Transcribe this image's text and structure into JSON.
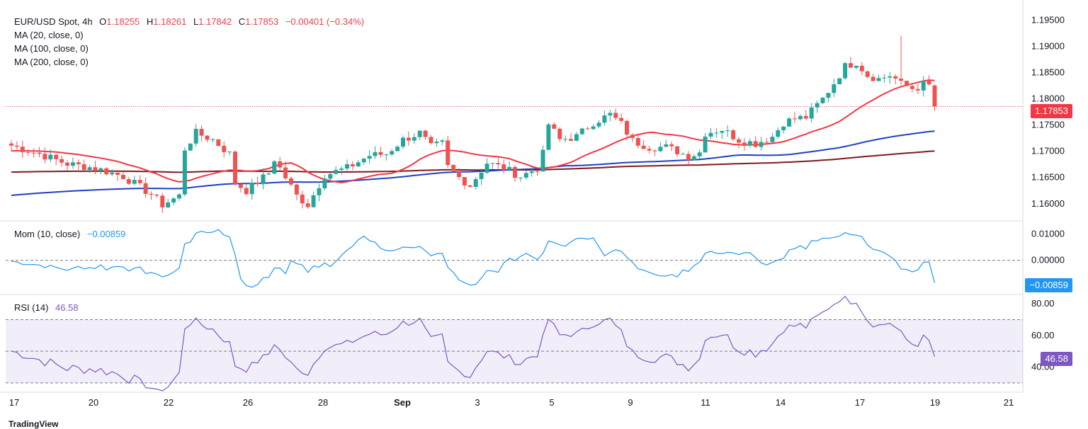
{
  "main_legend": {
    "symbol": "EUR/USD Spot, 4h",
    "open_label": "O",
    "open": "1.18255",
    "high_label": "H",
    "high": "1.18261",
    "low_label": "L",
    "low": "1.17842",
    "close_label": "C",
    "close": "1.17853",
    "change": "−0.00401 (−0.34%)",
    "ma20": "MA (20, close, 0)",
    "ma100": "MA (100, close, 0)",
    "ma200": "MA (200, close, 0)"
  },
  "mom_legend": {
    "label": "Mom (10, close)",
    "value": "−0.00859"
  },
  "rsi_legend": {
    "label": "RSI (14)",
    "value": "46.58"
  },
  "price_tag": "1.17853",
  "mom_tag": "−0.00859",
  "rsi_tag": "46.58",
  "watermark": "TradingView",
  "colors": {
    "up": "#26a69a",
    "down": "#ef5350",
    "ma20": "#f23645",
    "ma100": "#1e40c8",
    "ma200": "#801922",
    "mom": "#2196f3",
    "rsi": "#7e57c2"
  },
  "chart_data": {
    "type": "candlestick",
    "symbol": "EUR/USD Spot",
    "timeframe": "4h",
    "price_axis": [
      "1.19500",
      "1.19000",
      "1.18500",
      "1.18000",
      "1.17500",
      "1.17000",
      "1.16500",
      "1.16000"
    ],
    "mom_axis": [
      "0.01000",
      "0.00000"
    ],
    "rsi_axis": [
      "80.00",
      "60.00",
      "40.00"
    ],
    "x_labels": [
      "17",
      "20",
      "22",
      "26",
      "28",
      "Sep",
      "3",
      "5",
      "9",
      "11",
      "14",
      "17",
      "19",
      "21"
    ],
    "current_price": 1.17853,
    "price_range": [
      1.157,
      1.1975
    ],
    "anchors": [
      [
        0,
        1.1711
      ],
      [
        5,
        1.1695
      ],
      [
        10,
        1.1676
      ],
      [
        15,
        1.1668
      ],
      [
        20,
        1.1652
      ],
      [
        25,
        1.1618
      ],
      [
        27,
        1.1598
      ],
      [
        30,
        1.1615
      ],
      [
        31,
        1.1705
      ],
      [
        33,
        1.1735
      ],
      [
        36,
        1.1722
      ],
      [
        39,
        1.1695
      ],
      [
        40,
        1.164
      ],
      [
        42,
        1.1625
      ],
      [
        46,
        1.1658
      ],
      [
        47,
        1.1685
      ],
      [
        49,
        1.165
      ],
      [
        51,
        1.1615
      ],
      [
        53,
        1.1598
      ],
      [
        56,
        1.1655
      ],
      [
        60,
        1.1668
      ],
      [
        64,
        1.1692
      ],
      [
        67,
        1.1695
      ],
      [
        70,
        1.1722
      ],
      [
        73,
        1.1735
      ],
      [
        75,
        1.1708
      ],
      [
        77,
        1.1715
      ],
      [
        78,
        1.167
      ],
      [
        80,
        1.165
      ],
      [
        82,
        1.1635
      ],
      [
        85,
        1.1678
      ],
      [
        88,
        1.1668
      ],
      [
        91,
        1.1652
      ],
      [
        94,
        1.1668
      ],
      [
        95,
        1.1695
      ],
      [
        96,
        1.1752
      ],
      [
        98,
        1.1722
      ],
      [
        101,
        1.1728
      ],
      [
        104,
        1.1755
      ],
      [
        107,
        1.177
      ],
      [
        109,
        1.1752
      ],
      [
        111,
        1.172
      ],
      [
        114,
        1.1708
      ],
      [
        117,
        1.1708
      ],
      [
        119,
        1.17
      ],
      [
        121,
        1.169
      ],
      [
        123,
        1.1698
      ],
      [
        124,
        1.1735
      ],
      [
        127,
        1.1742
      ],
      [
        130,
        1.1722
      ],
      [
        133,
        1.1715
      ],
      [
        136,
        1.1728
      ],
      [
        138,
        1.1755
      ],
      [
        140,
        1.1762
      ],
      [
        142,
        1.1765
      ],
      [
        145,
        1.18
      ],
      [
        147,
        1.183
      ],
      [
        149,
        1.1862
      ],
      [
        151,
        1.187
      ],
      [
        153,
        1.1845
      ],
      [
        155,
        1.1838
      ],
      [
        157,
        1.1845
      ],
      [
        158,
        1.1838
      ],
      [
        159,
        1.1828
      ],
      [
        161,
        1.182
      ],
      [
        162,
        1.1822
      ],
      [
        163,
        1.1828
      ],
      [
        164,
        1.1825
      ],
      [
        165,
        1.17853
      ]
    ],
    "indicators": [
      "MA (20, close, 0)",
      "MA (100, close, 0)",
      "MA (200, close, 0)",
      "Mom (10, close)",
      "RSI (14)"
    ]
  }
}
